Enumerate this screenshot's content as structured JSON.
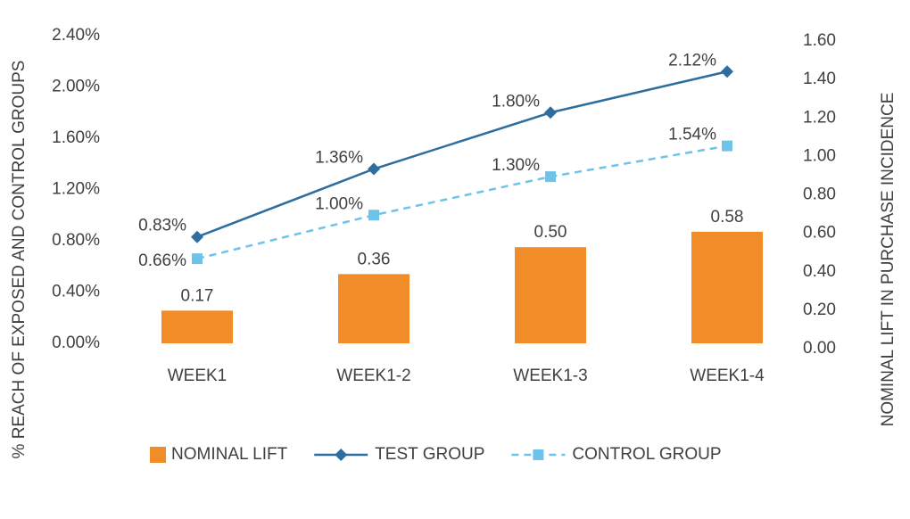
{
  "chart_data": {
    "type": "combo",
    "y_label": "% REACH OF EXPOSED AND CONTROL GROUPS",
    "y2_label": "NOMINAL LIFT IN PURCHASE INCIDENCE",
    "categories": [
      "WEEK1",
      "WEEK1-2",
      "WEEK1-3",
      "WEEK1-4"
    ],
    "series": [
      {
        "name": "NOMINAL LIFT",
        "type": "bar",
        "axis": "y2",
        "color": "#f28c28",
        "values": [
          0.17,
          0.36,
          0.5,
          0.58
        ],
        "value_labels": [
          "0.17",
          "0.36",
          "0.50",
          "0.58"
        ]
      },
      {
        "name": "TEST GROUP",
        "type": "line",
        "color": "#2e6e9e",
        "marker": "diamond",
        "values": [
          0.83,
          1.36,
          1.8,
          2.12
        ],
        "value_labels": [
          "0.83%",
          "1.36%",
          "1.80%",
          "2.12%"
        ]
      },
      {
        "name": "CONTROL GROUP",
        "type": "line",
        "color": "#6ec3ea",
        "marker": "square",
        "dashed": true,
        "values": [
          0.66,
          1.0,
          1.3,
          1.54
        ],
        "value_labels": [
          "0.66%",
          "1.00%",
          "1.30%",
          "1.54%"
        ]
      }
    ],
    "ylim": [
      0,
      2.4
    ],
    "yticks": [
      {
        "value": 0,
        "label": "0.00%"
      },
      {
        "value": 0.4,
        "label": "0.40%"
      },
      {
        "value": 0.8,
        "label": "0.80%"
      },
      {
        "value": 1.2,
        "label": "1.20%"
      },
      {
        "value": 1.6,
        "label": "1.60%"
      },
      {
        "value": 2.0,
        "label": "2.00%"
      },
      {
        "value": 2.4,
        "label": "2.40%"
      }
    ],
    "y2lim": [
      0,
      1.6
    ],
    "y2ticks": [
      {
        "value": 0,
        "label": "0.00"
      },
      {
        "value": 0.2,
        "label": "0.20"
      },
      {
        "value": 0.4,
        "label": "0.40"
      },
      {
        "value": 0.6,
        "label": "0.60"
      },
      {
        "value": 0.8,
        "label": "0.80"
      },
      {
        "value": 1.0,
        "label": "1.00"
      },
      {
        "value": 1.2,
        "label": "1.20"
      },
      {
        "value": 1.4,
        "label": "1.40"
      },
      {
        "value": 1.6,
        "label": "1.60"
      }
    ],
    "grid": false,
    "legend": "bottom"
  }
}
